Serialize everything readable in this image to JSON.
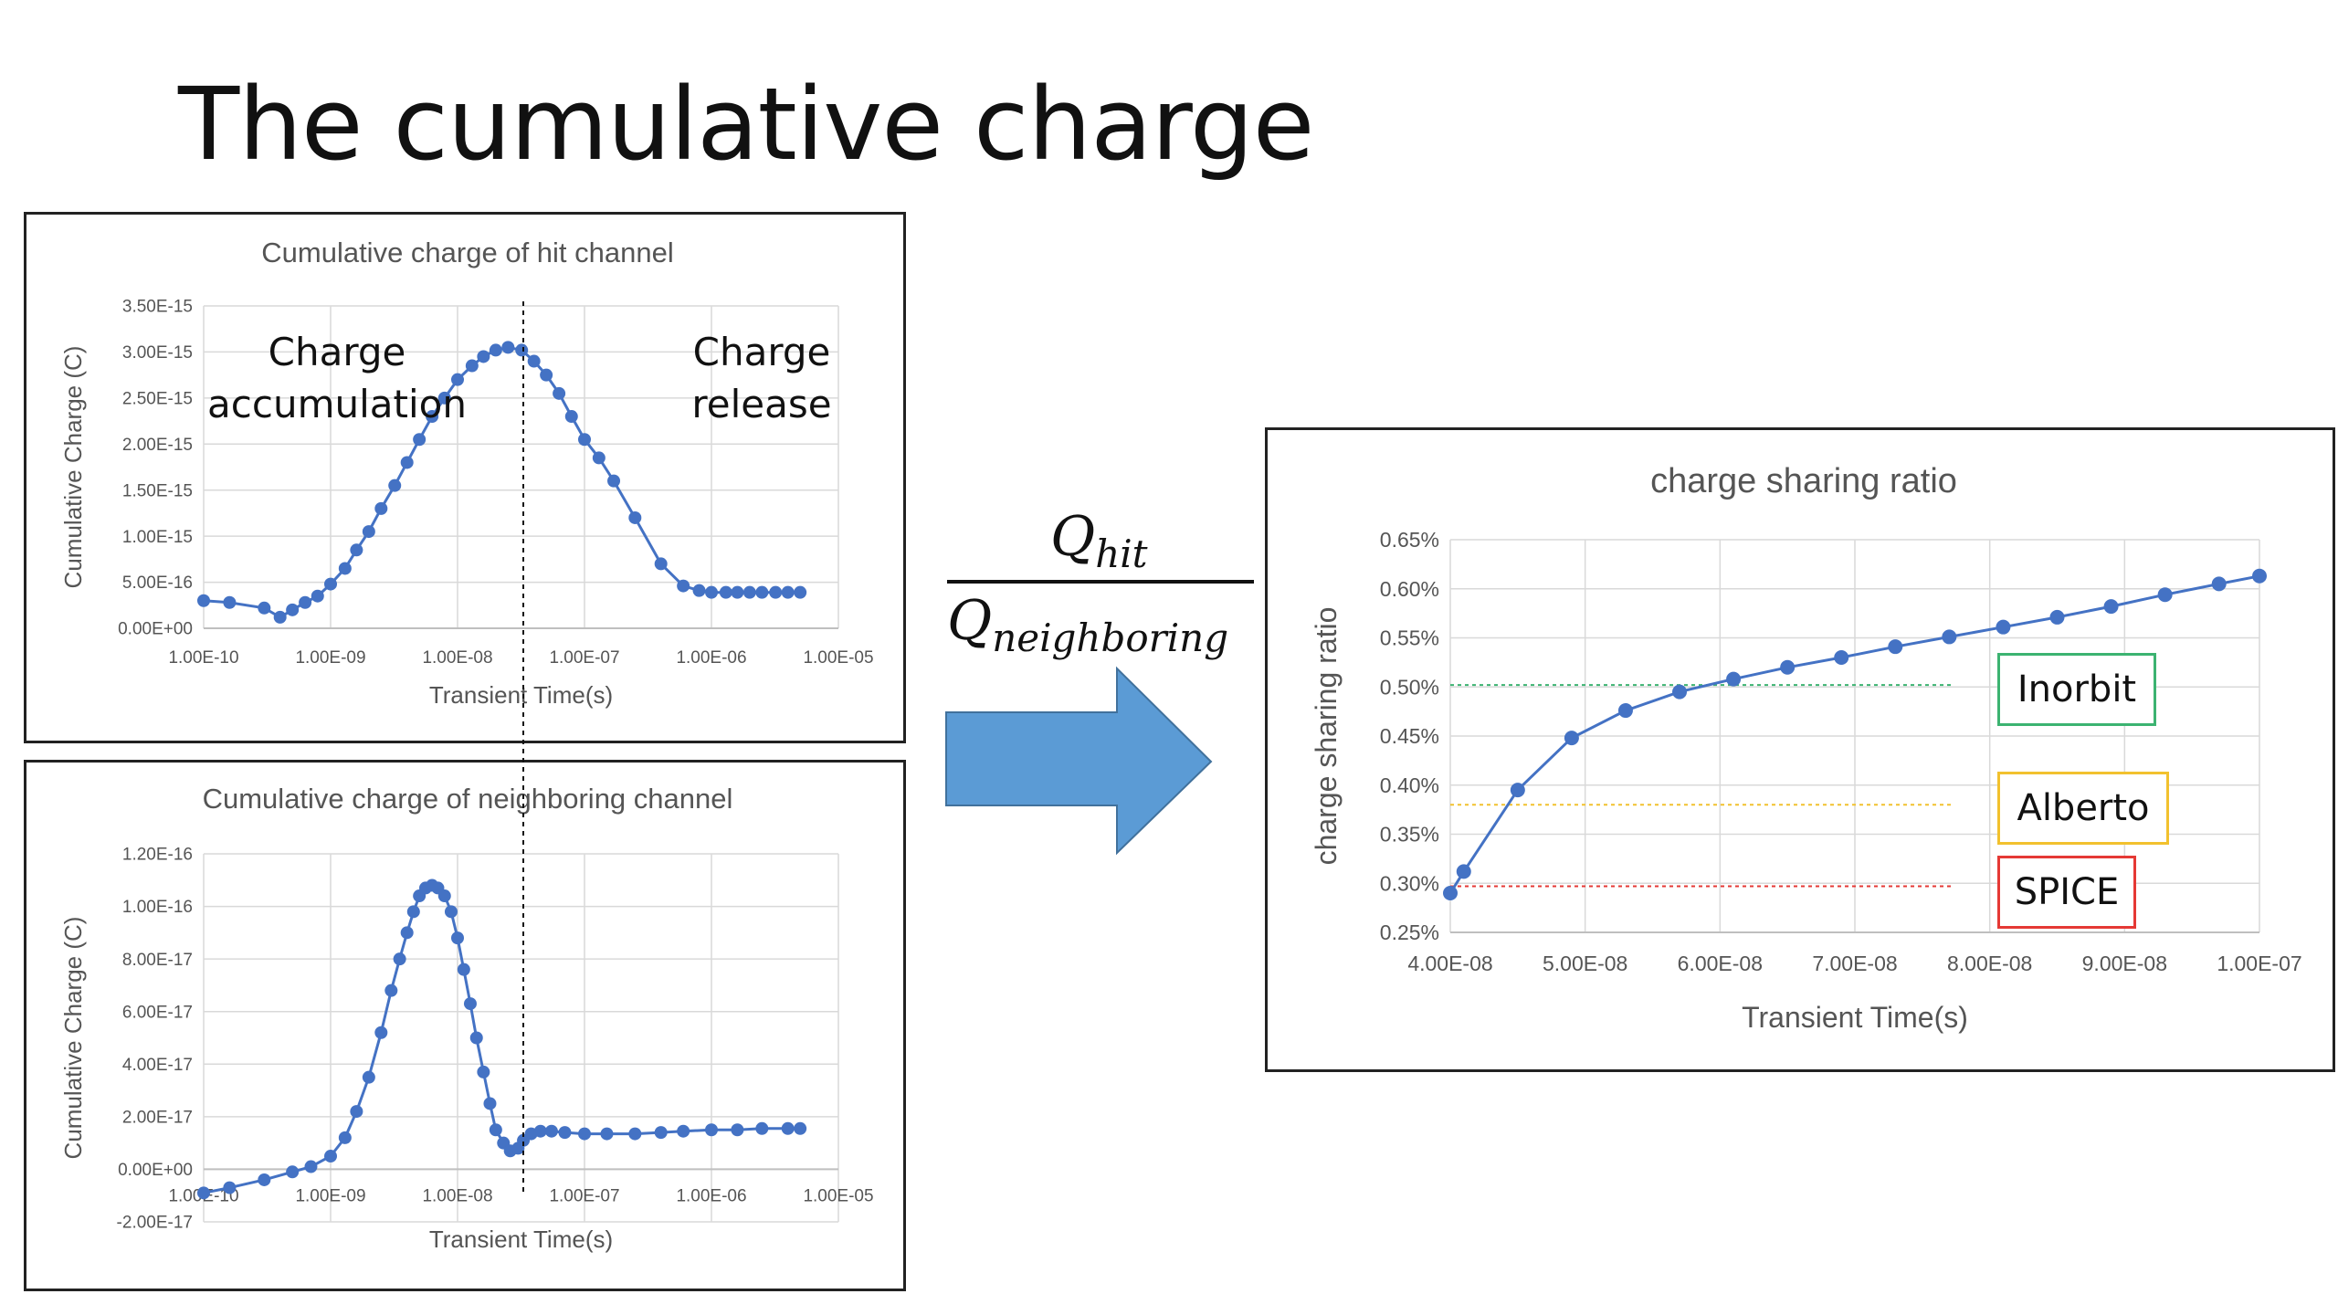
{
  "slide": {
    "title": "The cumulative charge",
    "formula": {
      "numerator_base": "Q",
      "numerator_sub": "hit",
      "denominator_base": "Q",
      "denominator_sub": "neighboring"
    },
    "arrow_color": "#5B9BD5"
  },
  "colors": {
    "series": "#4472C4",
    "grid": "#d9d9d9",
    "text": "#595959"
  },
  "chart_data": [
    {
      "id": "hit",
      "type": "line",
      "title": "Cumulative charge of hit channel",
      "xlabel": "Transient Time(s)",
      "ylabel": "Cumulative Charge (C)",
      "xscale": "log",
      "xlim": [
        1e-10,
        1e-05
      ],
      "ylim": [
        0,
        3.5e-15
      ],
      "xticks": [
        "1.00E-10",
        "1.00E-09",
        "1.00E-08",
        "1.00E-07",
        "1.00E-06",
        "1.00E-05"
      ],
      "yticks": [
        "0.00E+00",
        "5.00E-16",
        "1.00E-15",
        "1.50E-15",
        "2.00E-15",
        "2.50E-15",
        "3.00E-15",
        "3.50E-15"
      ],
      "annotations": [
        "Charge",
        "accumulation",
        "Charge",
        "release"
      ],
      "vline_x": 3.3e-08,
      "series": [
        {
          "x": [
            1e-10,
            1.6e-10,
            3e-10,
            4e-10,
            5e-10,
            6.3e-10,
            7.9e-10,
            1e-09,
            1.3e-09,
            1.6e-09,
            2e-09,
            2.5e-09,
            3.2e-09,
            4e-09,
            5e-09,
            6.3e-09,
            7.9e-09,
            1e-08,
            1.3e-08,
            1.6e-08,
            2e-08,
            2.5e-08,
            3.2e-08,
            4e-08,
            5e-08,
            6.3e-08,
            7.9e-08,
            1e-07,
            1.3e-07,
            1.7e-07,
            2.5e-07,
            4e-07,
            6e-07,
            8e-07,
            1e-06,
            1.3e-06,
            1.6e-06,
            2e-06,
            2.5e-06,
            3.2e-06,
            4e-06,
            5e-06
          ],
          "y": [
            3e-16,
            2.8e-16,
            2.2e-16,
            1.2e-16,
            2e-16,
            2.8e-16,
            3.5e-16,
            4.8e-16,
            6.5e-16,
            8.5e-16,
            1.05e-15,
            1.3e-15,
            1.55e-15,
            1.8e-15,
            2.05e-15,
            2.3e-15,
            2.5e-15,
            2.7e-15,
            2.85e-15,
            2.95e-15,
            3.02e-15,
            3.05e-15,
            3.02e-15,
            2.9e-15,
            2.75e-15,
            2.55e-15,
            2.3e-15,
            2.05e-15,
            1.85e-15,
            1.6e-15,
            1.2e-15,
            7e-16,
            4.6e-16,
            4.1e-16,
            3.9e-16,
            3.9e-16,
            3.9e-16,
            3.9e-16,
            3.9e-16,
            3.9e-16,
            3.9e-16,
            3.9e-16
          ]
        }
      ]
    },
    {
      "id": "neighboring",
      "type": "line",
      "title": "Cumulative charge of neighboring channel",
      "xlabel": "Transient Time(s)",
      "ylabel": "Cumulative Charge (C)",
      "xscale": "log",
      "xlim": [
        1e-10,
        1e-05
      ],
      "ylim": [
        -2e-17,
        1.2e-16
      ],
      "xticks": [
        "1.00E-10",
        "1.00E-09",
        "1.00E-08",
        "1.00E-07",
        "1.00E-06",
        "1.00E-05"
      ],
      "yticks": [
        "-2.00E-17",
        "0.00E+00",
        "2.00E-17",
        "4.00E-17",
        "6.00E-17",
        "8.00E-17",
        "1.00E-16",
        "1.20E-16"
      ],
      "vline_x": 3.3e-08,
      "series": [
        {
          "x": [
            1e-10,
            1.6e-10,
            3e-10,
            5e-10,
            7e-10,
            1e-09,
            1.3e-09,
            1.6e-09,
            2e-09,
            2.5e-09,
            3e-09,
            3.5e-09,
            4e-09,
            4.5e-09,
            5e-09,
            5.6e-09,
            6.3e-09,
            7e-09,
            7.9e-09,
            8.9e-09,
            1e-08,
            1.12e-08,
            1.26e-08,
            1.41e-08,
            1.6e-08,
            1.8e-08,
            2e-08,
            2.3e-08,
            2.6e-08,
            3e-08,
            3.3e-08,
            3.8e-08,
            4.5e-08,
            5.5e-08,
            7e-08,
            1e-07,
            1.5e-07,
            2.5e-07,
            4e-07,
            6e-07,
            1e-06,
            1.6e-06,
            2.5e-06,
            4e-06,
            5e-06
          ],
          "y": [
            -9e-18,
            -7e-18,
            -4e-18,
            -1e-18,
            1e-18,
            5e-18,
            1.2e-17,
            2.2e-17,
            3.5e-17,
            5.2e-17,
            6.8e-17,
            8e-17,
            9e-17,
            9.8e-17,
            1.04e-16,
            1.07e-16,
            1.08e-16,
            1.07e-16,
            1.04e-16,
            9.8e-17,
            8.8e-17,
            7.6e-17,
            6.3e-17,
            5e-17,
            3.7e-17,
            2.5e-17,
            1.5e-17,
            1e-17,
            7e-18,
            8e-18,
            1.1e-17,
            1.35e-17,
            1.45e-17,
            1.45e-17,
            1.4e-17,
            1.35e-17,
            1.35e-17,
            1.35e-17,
            1.4e-17,
            1.45e-17,
            1.5e-17,
            1.5e-17,
            1.55e-17,
            1.55e-17,
            1.55e-17
          ]
        }
      ]
    },
    {
      "id": "ratio",
      "type": "line",
      "title": "charge sharing ratio",
      "xlabel": "Transient Time(s)",
      "ylabel": "charge sharing ratio",
      "xlim": [
        4e-08,
        1e-07
      ],
      "ylim": [
        0.25,
        0.65
      ],
      "xticks": [
        "4.00E-08",
        "5.00E-08",
        "6.00E-08",
        "7.00E-08",
        "8.00E-08",
        "9.00E-08",
        "1.00E-07"
      ],
      "yticks": [
        "0.25%",
        "0.30%",
        "0.35%",
        "0.40%",
        "0.45%",
        "0.50%",
        "0.55%",
        "0.60%",
        "0.65%"
      ],
      "series": [
        {
          "x": [
            4e-08,
            4.1e-08,
            4.5e-08,
            4.9e-08,
            5.3e-08,
            5.7e-08,
            6.1e-08,
            6.5e-08,
            6.9e-08,
            7.3e-08,
            7.7e-08,
            8.1e-08,
            8.5e-08,
            8.9e-08,
            9.3e-08,
            9.7e-08,
            1e-07
          ],
          "y": [
            0.29,
            0.312,
            0.395,
            0.448,
            0.476,
            0.495,
            0.508,
            0.52,
            0.53,
            0.541,
            0.551,
            0.561,
            0.571,
            0.582,
            0.594,
            0.605,
            0.613
          ]
        }
      ],
      "reference_lines": [
        {
          "name": "Inorbit",
          "y": 0.502,
          "color": "#3CB371"
        },
        {
          "name": "Alberto",
          "y": 0.38,
          "color": "#F2C12E"
        },
        {
          "name": "SPICE",
          "y": 0.297,
          "color": "#E53935"
        }
      ]
    }
  ]
}
